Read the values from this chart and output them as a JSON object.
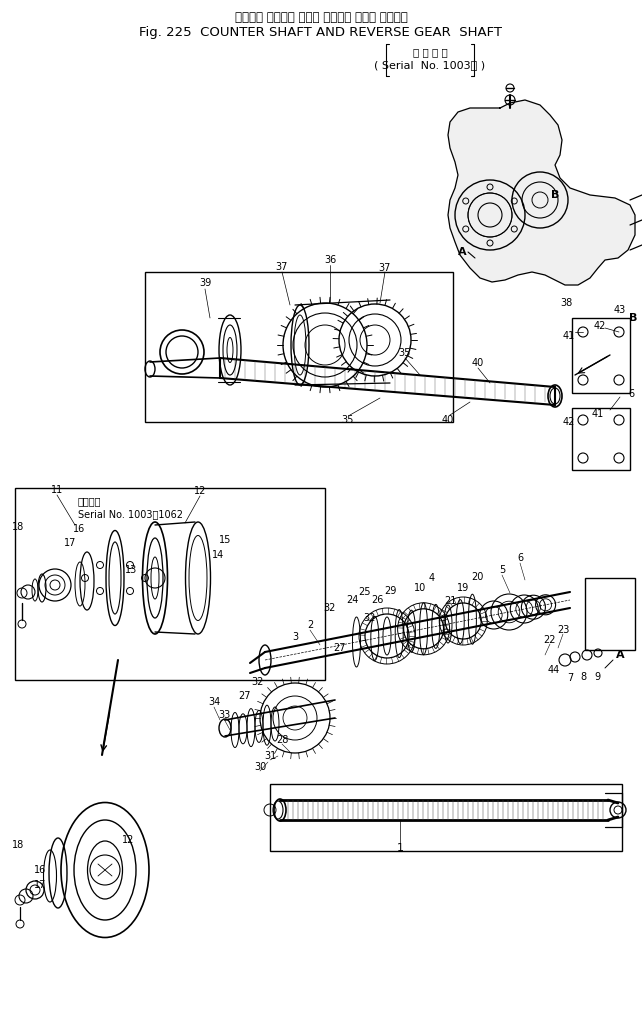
{
  "title_jp": "カウンタ シャフト および リバース ギヤー シャフト",
  "title_en": "Fig. 225  COUNTER SHAFT AND REVERSE GEAR  SHAFT",
  "serial_new": "(適 用 号 機\n  Serial  No. 1003～ )",
  "serial_old": "適用号機\n Serial No. 1003～1062",
  "bg_color": "#ffffff",
  "lc": "#000000",
  "fig_w": 6.42,
  "fig_h": 10.14,
  "dpi": 100
}
